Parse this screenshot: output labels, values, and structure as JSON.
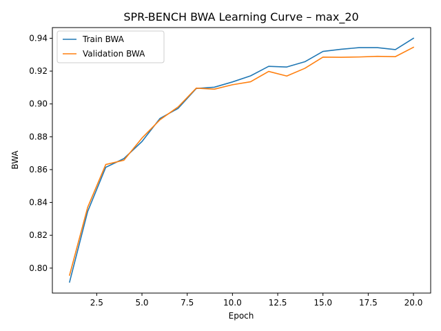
{
  "chart_data": {
    "type": "line",
    "title": "SPR-BENCH BWA Learning Curve – max_20",
    "xlabel": "Epoch",
    "ylabel": "BWA",
    "xlim": [
      0.05,
      20.95
    ],
    "ylim": [
      0.7848,
      0.9465
    ],
    "x_ticks": [
      2.5,
      5.0,
      7.5,
      10.0,
      12.5,
      15.0,
      17.5,
      20.0
    ],
    "x_tick_labels": [
      "2.5",
      "5.0",
      "7.5",
      "10.0",
      "12.5",
      "15.0",
      "17.5",
      "20.0"
    ],
    "y_ticks": [
      0.8,
      0.82,
      0.84,
      0.86,
      0.88,
      0.9,
      0.92,
      0.94
    ],
    "y_tick_labels": [
      "0.80",
      "0.82",
      "0.84",
      "0.86",
      "0.88",
      "0.90",
      "0.92",
      "0.94"
    ],
    "grid": false,
    "legend_position": "upper-left",
    "x": [
      1,
      2,
      3,
      4,
      5,
      6,
      7,
      8,
      9,
      10,
      11,
      12,
      13,
      14,
      15,
      16,
      17,
      18,
      19,
      20
    ],
    "series": [
      {
        "name": "Train BWA",
        "color": "#1f77b4",
        "values": [
          0.7915,
          0.8345,
          0.8614,
          0.8667,
          0.8771,
          0.8912,
          0.8973,
          0.9094,
          0.9102,
          0.9134,
          0.9171,
          0.9229,
          0.9225,
          0.9257,
          0.932,
          0.9333,
          0.9343,
          0.9343,
          0.9331,
          0.94
        ]
      },
      {
        "name": "Validation BWA",
        "color": "#ff7f0e",
        "values": [
          0.7957,
          0.837,
          0.8631,
          0.8657,
          0.8792,
          0.8904,
          0.8982,
          0.9096,
          0.909,
          0.9117,
          0.9135,
          0.9198,
          0.917,
          0.9217,
          0.9285,
          0.9284,
          0.9286,
          0.929,
          0.9288,
          0.9345
        ]
      }
    ]
  }
}
